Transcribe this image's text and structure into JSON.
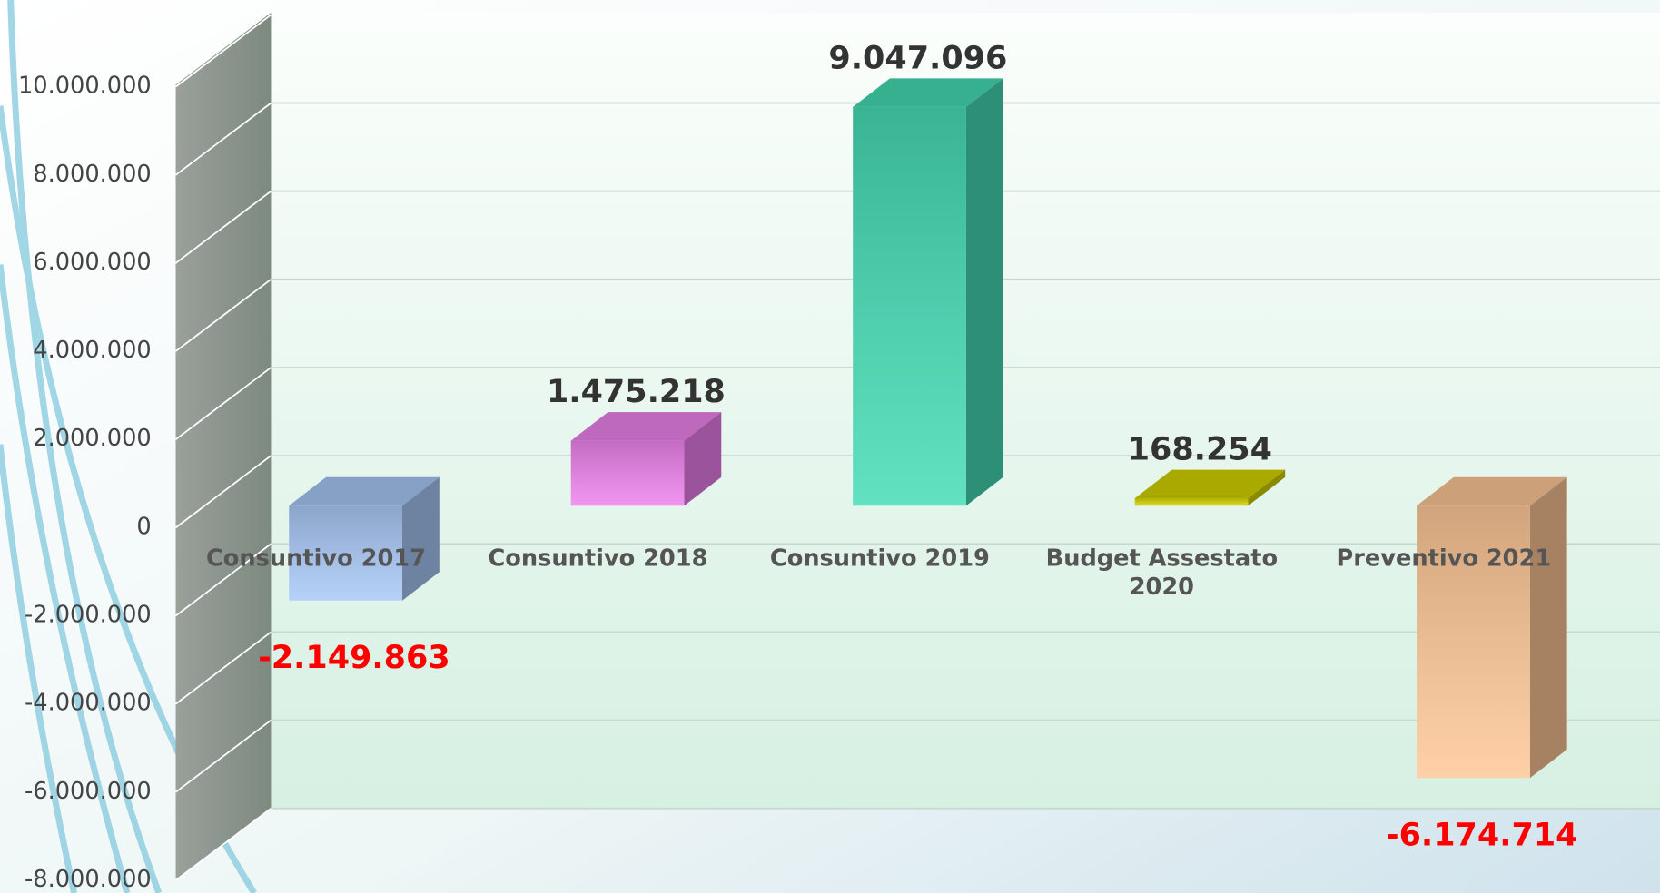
{
  "chart_data": {
    "type": "bar3d",
    "categories": [
      "Consuntivo 2017",
      "Consuntivo 2018",
      "Consuntivo 2019",
      "Budget Assestato 2020",
      "Preventivo 2021"
    ],
    "values": [
      -2149863,
      1475218,
      9047096,
      168254,
      -6174714
    ],
    "value_labels": [
      "-2.149.863",
      "1.475.218",
      "9.047.096",
      "168.254",
      "-6.174.714"
    ],
    "colors": [
      "#a9c9f7",
      "#ee82ee",
      "#45dcb4",
      "#d4d400",
      "#ffc898"
    ],
    "ylim": [
      -8000000,
      10000000
    ],
    "yticks": [
      {
        "value": -8000000,
        "label": "-8.000.000"
      },
      {
        "value": -6000000,
        "label": "-6.000.000"
      },
      {
        "value": -4000000,
        "label": "-4.000.000"
      },
      {
        "value": -2000000,
        "label": "-2.000.000"
      },
      0,
      {
        "value": 2000000,
        "label": "2.000.000"
      },
      {
        "value": 4000000,
        "label": "4.000.000"
      },
      {
        "value": 6000000,
        "label": "6.000.000"
      },
      {
        "value": 8000000,
        "label": "8.000.000"
      },
      {
        "value": 10000000,
        "label": "10.000.000"
      }
    ],
    "grid": true
  }
}
